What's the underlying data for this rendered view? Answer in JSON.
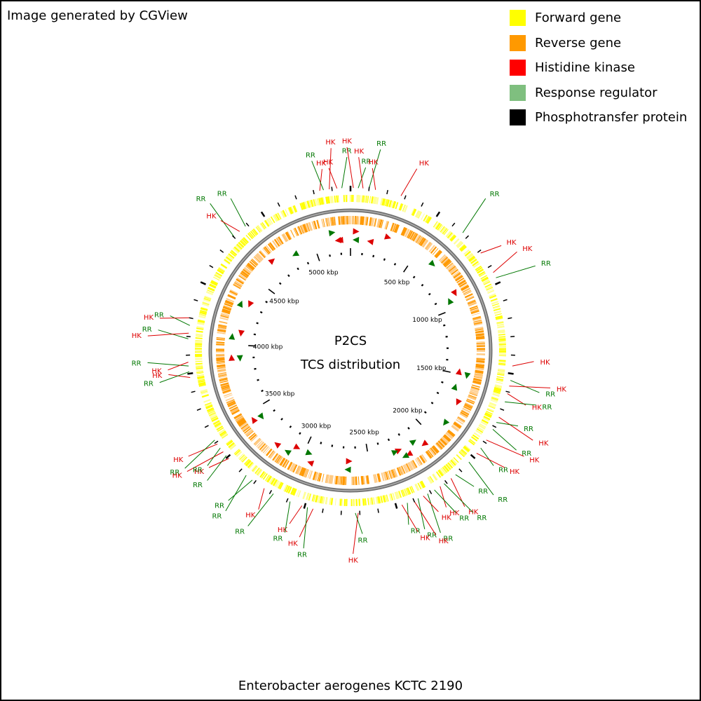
{
  "credit": "Image generated by CGView",
  "title_line1": "P2CS",
  "title_line2": "TCS distribution",
  "organism": "Enterobacter aerogenes KCTC 2190",
  "legend": [
    {
      "label": "Forward gene",
      "color": "#ffff00"
    },
    {
      "label": "Reverse gene",
      "color": "#ff9900"
    },
    {
      "label": "Histidine kinase",
      "color": "#ff0000"
    },
    {
      "label": "Response regulator",
      "color": "#7fbf7f"
    },
    {
      "label": "Phosphotransfer protein",
      "color": "#000000"
    }
  ],
  "genome_kbp": 5280,
  "scale_labels": [
    "500 kbp",
    "1000 kbp",
    "1500 kbp",
    "2000 kbp",
    "2500 kbp",
    "3000 kbp",
    "3500 kbp",
    "4000 kbp",
    "4500 kbp",
    "5000 kbp"
  ],
  "feature_colors": {
    "HK": "#dd0000",
    "RR": "#007700"
  },
  "features": [
    {
      "type": "HK",
      "kbp": 5120
    },
    {
      "type": "RR",
      "kbp": 5140
    },
    {
      "type": "HK",
      "kbp": 5170
    },
    {
      "type": "HK",
      "kbp": 5210
    },
    {
      "type": "RR",
      "kbp": 5235
    },
    {
      "type": "HK",
      "kbp": 15
    },
    {
      "type": "RR",
      "kbp": 40
    },
    {
      "type": "HK",
      "kbp": 65
    },
    {
      "type": "RR",
      "kbp": 95
    },
    {
      "type": "HK",
      "kbp": 130
    },
    {
      "type": "HK",
      "kbp": 265
    },
    {
      "type": "RR",
      "kbp": 640
    },
    {
      "type": "HK",
      "kbp": 780
    },
    {
      "type": "HK",
      "kbp": 900
    },
    {
      "type": "RR",
      "kbp": 930
    },
    {
      "type": "HK",
      "kbp": 1400
    },
    {
      "type": "RR",
      "kbp": 1475
    },
    {
      "type": "HK",
      "kbp": 1505
    },
    {
      "type": "HK",
      "kbp": 1545
    },
    {
      "type": "RR",
      "kbp": 1590
    },
    {
      "type": "HK",
      "kbp": 1675
    },
    {
      "type": "RR",
      "kbp": 1705
    },
    {
      "type": "RR",
      "kbp": 1745
    },
    {
      "type": "HK",
      "kbp": 1810
    },
    {
      "type": "RR",
      "kbp": 1860
    },
    {
      "type": "HK",
      "kbp": 1895
    },
    {
      "type": "RR",
      "kbp": 1955
    },
    {
      "type": "RR",
      "kbp": 2050
    },
    {
      "type": "HK",
      "kbp": 2080
    },
    {
      "type": "RR",
      "kbp": 2125
    },
    {
      "type": "HK",
      "kbp": 2150
    },
    {
      "type": "RR",
      "kbp": 2185
    },
    {
      "type": "RR",
      "kbp": 2225
    },
    {
      "type": "HK",
      "kbp": 2250
    },
    {
      "type": "RR",
      "kbp": 2280
    },
    {
      "type": "HK",
      "kbp": 2305
    },
    {
      "type": "RR",
      "kbp": 2340
    },
    {
      "type": "HK",
      "kbp": 2370
    },
    {
      "type": "HK",
      "kbp": 2600
    },
    {
      "type": "RR",
      "kbp": 2615
    },
    {
      "type": "HK",
      "kbp": 2835
    },
    {
      "type": "RR",
      "kbp": 2865
    },
    {
      "type": "HK",
      "kbp": 2895
    },
    {
      "type": "RR",
      "kbp": 2960
    },
    {
      "type": "RR",
      "kbp": 3055
    },
    {
      "type": "HK",
      "kbp": 3110
    },
    {
      "type": "RR",
      "kbp": 3185
    },
    {
      "type": "RR",
      "kbp": 3225
    },
    {
      "type": "HK",
      "kbp": 3350
    },
    {
      "type": "RR",
      "kbp": 3370
    },
    {
      "type": "HK",
      "kbp": 3395
    },
    {
      "type": "RR",
      "kbp": 3420
    },
    {
      "type": "HK",
      "kbp": 3445
    },
    {
      "type": "RR",
      "kbp": 3470
    },
    {
      "type": "HK",
      "kbp": 3820
    },
    {
      "type": "RR",
      "kbp": 3850
    },
    {
      "type": "RR",
      "kbp": 3880
    },
    {
      "type": "HK",
      "kbp": 3900
    },
    {
      "type": "RR",
      "kbp": 4020
    },
    {
      "type": "HK",
      "kbp": 4050
    },
    {
      "type": "RR",
      "kbp": 4090
    },
    {
      "type": "HK",
      "kbp": 4130
    },
    {
      "type": "RR",
      "kbp": 4610
    },
    {
      "type": "HK",
      "kbp": 4650
    },
    {
      "type": "RR",
      "kbp": 4690
    }
  ],
  "markers": [
    {
      "type": "HK",
      "kbp": 5185,
      "strand": "reverse"
    },
    {
      "type": "HK",
      "kbp": 5200,
      "strand": "reverse"
    },
    {
      "type": "RR",
      "kbp": 5150,
      "strand": "forward"
    },
    {
      "type": "HK",
      "kbp": 40,
      "strand": "forward"
    },
    {
      "type": "RR",
      "kbp": 40,
      "strand": "reverse"
    },
    {
      "type": "HK",
      "kbp": 150,
      "strand": "reverse"
    },
    {
      "type": "HK",
      "kbp": 270,
      "strand": "forward"
    },
    {
      "type": "RR",
      "kbp": 640,
      "strand": "forward"
    },
    {
      "type": "HK",
      "kbp": 900,
      "strand": "forward"
    },
    {
      "type": "RR",
      "kbp": 930,
      "strand": "reverse"
    },
    {
      "type": "HK",
      "kbp": 1480,
      "strand": "reverse"
    },
    {
      "type": "RR",
      "kbp": 1500,
      "strand": "forward"
    },
    {
      "type": "RR",
      "kbp": 1600,
      "strand": "reverse"
    },
    {
      "type": "HK",
      "kbp": 1700,
      "strand": "forward"
    },
    {
      "type": "RR",
      "kbp": 1870,
      "strand": "forward"
    },
    {
      "type": "HK",
      "kbp": 2080,
      "strand": "forward"
    },
    {
      "type": "RR",
      "kbp": 2130,
      "strand": "reverse"
    },
    {
      "type": "HK",
      "kbp": 2210,
      "strand": "forward"
    },
    {
      "type": "RR",
      "kbp": 2240,
      "strand": "forward"
    },
    {
      "type": "HK",
      "kbp": 2260,
      "strand": "reverse"
    },
    {
      "type": "RR",
      "kbp": 2290,
      "strand": "reverse"
    },
    {
      "type": "HK",
      "kbp": 2650,
      "strand": "reverse"
    },
    {
      "type": "RR",
      "kbp": 2660,
      "strand": "forward"
    },
    {
      "type": "HK",
      "kbp": 2930,
      "strand": "forward"
    },
    {
      "type": "RR",
      "kbp": 2960,
      "strand": "reverse"
    },
    {
      "type": "HK",
      "kbp": 3060,
      "strand": "reverse"
    },
    {
      "type": "RR",
      "kbp": 3110,
      "strand": "forward"
    },
    {
      "type": "HK",
      "kbp": 3200,
      "strand": "forward"
    },
    {
      "type": "RR",
      "kbp": 3420,
      "strand": "reverse"
    },
    {
      "type": "HK",
      "kbp": 3440,
      "strand": "forward"
    },
    {
      "type": "RR",
      "kbp": 3900,
      "strand": "reverse"
    },
    {
      "type": "HK",
      "kbp": 3910,
      "strand": "forward"
    },
    {
      "type": "RR",
      "kbp": 4060,
      "strand": "forward"
    },
    {
      "type": "HK",
      "kbp": 4090,
      "strand": "reverse"
    },
    {
      "type": "RR",
      "kbp": 4300,
      "strand": "forward"
    },
    {
      "type": "HK",
      "kbp": 4320,
      "strand": "reverse"
    },
    {
      "type": "RR",
      "kbp": 4840,
      "strand": "reverse"
    },
    {
      "type": "HK",
      "kbp": 4680,
      "strand": "forward"
    }
  ]
}
